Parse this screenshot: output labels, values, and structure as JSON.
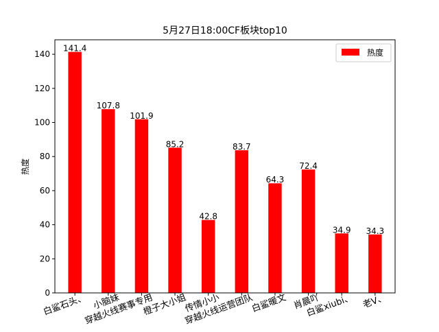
{
  "chart_data": {
    "type": "bar",
    "title": "5月27日18:00CF板块top10",
    "xlabel": "",
    "ylabel": "热度",
    "categories": [
      "白鲨石头、",
      "小脑妹",
      "穿越火线赛事专用",
      "橙子大小姐",
      "传情小小",
      "穿越火线运营团队",
      "白鲨暖文",
      "肖晨吖",
      "白鲨xiubi、",
      "老V、"
    ],
    "series": [
      {
        "name": "热度",
        "values": [
          141.4,
          107.8,
          101.9,
          85.2,
          42.8,
          83.7,
          64.3,
          72.4,
          34.9,
          34.3
        ],
        "color": "#ff0000"
      }
    ],
    "value_labels": [
      "141.4",
      "107.8",
      "101.9",
      "85.2",
      "42.8",
      "83.7",
      "64.3",
      "72.4",
      "34.9",
      "34.3"
    ],
    "ylim": [
      0,
      148.5
    ],
    "yticks": [
      0,
      20,
      40,
      60,
      80,
      100,
      120,
      140
    ],
    "grid": false,
    "legend_position": "top-right",
    "xtick_rotation": -20
  }
}
